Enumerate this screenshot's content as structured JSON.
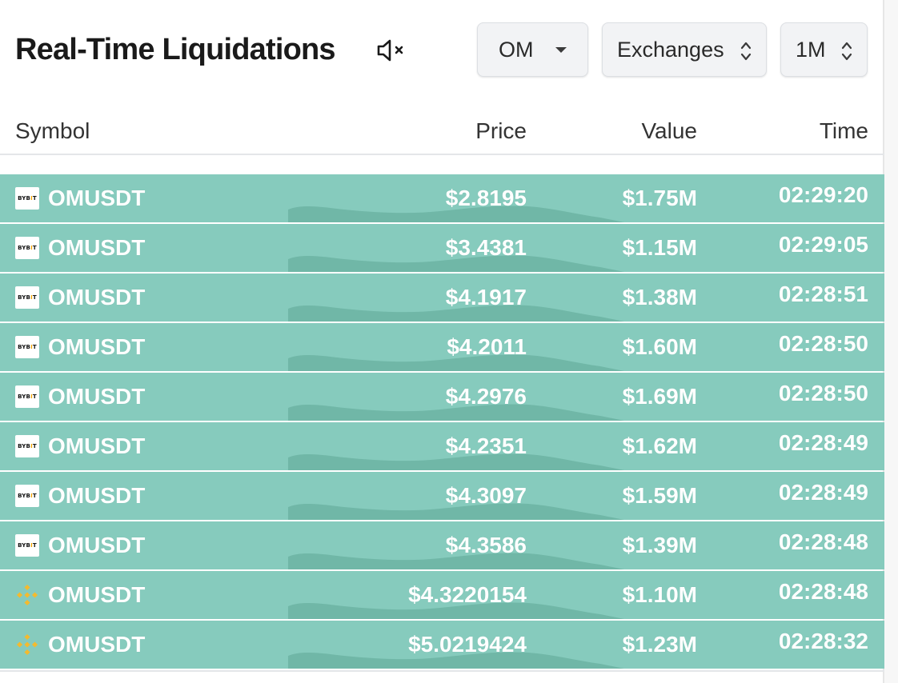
{
  "header": {
    "title": "Real-Time Liquidations",
    "coin_select": "OM",
    "exchange_select": "Exchanges",
    "interval_select": "1M"
  },
  "table": {
    "columns": {
      "symbol": "Symbol",
      "price": "Price",
      "value": "Value",
      "time": "Time"
    },
    "rows": [
      {
        "exchange": "Bybit",
        "exchange_icon": "bybit-logo-icon",
        "symbol": "OMUSDT",
        "price": "$2.8195",
        "value": "$1.75M",
        "time": "02:29:20"
      },
      {
        "exchange": "Bybit",
        "exchange_icon": "bybit-logo-icon",
        "symbol": "OMUSDT",
        "price": "$3.4381",
        "value": "$1.15M",
        "time": "02:29:05"
      },
      {
        "exchange": "Bybit",
        "exchange_icon": "bybit-logo-icon",
        "symbol": "OMUSDT",
        "price": "$4.1917",
        "value": "$1.38M",
        "time": "02:28:51"
      },
      {
        "exchange": "Bybit",
        "exchange_icon": "bybit-logo-icon",
        "symbol": "OMUSDT",
        "price": "$4.2011",
        "value": "$1.60M",
        "time": "02:28:50"
      },
      {
        "exchange": "Bybit",
        "exchange_icon": "bybit-logo-icon",
        "symbol": "OMUSDT",
        "price": "$4.2976",
        "value": "$1.69M",
        "time": "02:28:50"
      },
      {
        "exchange": "Bybit",
        "exchange_icon": "bybit-logo-icon",
        "symbol": "OMUSDT",
        "price": "$4.2351",
        "value": "$1.62M",
        "time": "02:28:49"
      },
      {
        "exchange": "Bybit",
        "exchange_icon": "bybit-logo-icon",
        "symbol": "OMUSDT",
        "price": "$4.3097",
        "value": "$1.59M",
        "time": "02:28:49"
      },
      {
        "exchange": "Bybit",
        "exchange_icon": "bybit-logo-icon",
        "symbol": "OMUSDT",
        "price": "$4.3586",
        "value": "$1.39M",
        "time": "02:28:48"
      },
      {
        "exchange": "Binance",
        "exchange_icon": "binance-logo-icon",
        "symbol": "OMUSDT",
        "price": "$4.3220154",
        "value": "$1.10M",
        "time": "02:28:48"
      },
      {
        "exchange": "Binance",
        "exchange_icon": "binance-logo-icon",
        "symbol": "OMUSDT",
        "price": "$5.0219424",
        "value": "$1.23M",
        "time": "02:28:32"
      }
    ]
  },
  "icons": {
    "mute": "speaker-muted-icon",
    "coin_dropdown": "caret-down-icon",
    "sort": "chevron-up-down-icon"
  },
  "colors": {
    "row_bg": "#86cbbd",
    "row_text": "#ffffff",
    "binance": "#f3ba2f",
    "bybit_accent": "#f7a600"
  }
}
